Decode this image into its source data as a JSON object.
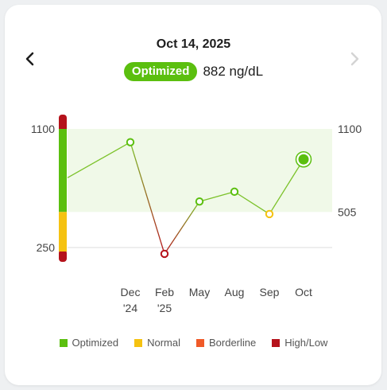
{
  "header": {
    "date": "Oct 14, 2025",
    "status_badge": "Optimized",
    "reading": "882 ng/dL",
    "prev_icon": "chevron-left-icon",
    "next_icon": "chevron-right-icon"
  },
  "colors": {
    "optimized": "#5bbf0f",
    "normal": "#f5c211",
    "borderline": "#f05a28",
    "high_low": "#b5121b",
    "band": "#f0f9e8",
    "line": "#7cc22a"
  },
  "legend": [
    {
      "label": "Optimized",
      "color": "#5bbf0f"
    },
    {
      "label": "Normal",
      "color": "#f5c211"
    },
    {
      "label": "Borderline",
      "color": "#f05a28"
    },
    {
      "label": "High/Low",
      "color": "#b5121b"
    }
  ],
  "chart_data": {
    "type": "line",
    "left_axis_ticks": [
      1100,
      250
    ],
    "right_axis_ticks": [
      1100,
      505
    ],
    "ylim": [
      250,
      1100
    ],
    "optimal_band": [
      505,
      1100
    ],
    "categories": [
      {
        "line1": "Dec",
        "line2": "'24"
      },
      {
        "line1": "Feb",
        "line2": "'25"
      },
      {
        "line1": "May",
        "line2": ""
      },
      {
        "line1": "Aug",
        "line2": ""
      },
      {
        "line1": "Sep",
        "line2": ""
      },
      {
        "line1": "Oct",
        "line2": ""
      }
    ],
    "start_value": 750,
    "points": [
      {
        "category": 0,
        "value": 1005,
        "status": "optimized"
      },
      {
        "category": 1,
        "value": 205,
        "status": "high_low"
      },
      {
        "category": 2,
        "value": 580,
        "status": "optimized"
      },
      {
        "category": 3,
        "value": 650,
        "status": "optimized"
      },
      {
        "category": 4,
        "value": 490,
        "status": "normal"
      },
      {
        "category": 5,
        "value": 882,
        "status": "optimized",
        "current": true
      }
    ]
  }
}
